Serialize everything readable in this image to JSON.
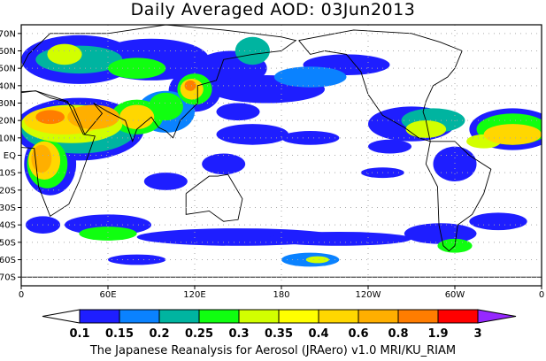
{
  "title": "Daily Averaged AOD: 03Jun2013",
  "credit": "The Japanese Reanalysis for Aerosol (JRAero) v1.0 MRI/KU_RIAM",
  "map": {
    "projection": "cylindrical equidistant",
    "lon_range": [
      0,
      360
    ],
    "lat_range": [
      -75,
      75
    ],
    "lat_labels": [
      "70N",
      "60N",
      "50N",
      "40N",
      "30N",
      "20N",
      "10N",
      "EQ",
      "10S",
      "20S",
      "30S",
      "40S",
      "50S",
      "60S",
      "70S"
    ],
    "lon_labels": [
      "0",
      "60E",
      "120E",
      "180",
      "120W",
      "60W",
      "0"
    ],
    "gridlines": "dotted"
  },
  "colorbar": {
    "levels": [
      "0.1",
      "0.15",
      "0.2",
      "0.25",
      "0.3",
      "0.35",
      "0.4",
      "0.6",
      "0.8",
      "1.9",
      "3"
    ],
    "colors": [
      "#1e1eff",
      "#0a82ff",
      "#00b4a0",
      "#10ff10",
      "#d2ff00",
      "#ffff00",
      "#ffd700",
      "#ffaf00",
      "#ff7d00",
      "#ff0000"
    ],
    "below_color": "#ffffff",
    "above_color": "#9628ff"
  }
}
